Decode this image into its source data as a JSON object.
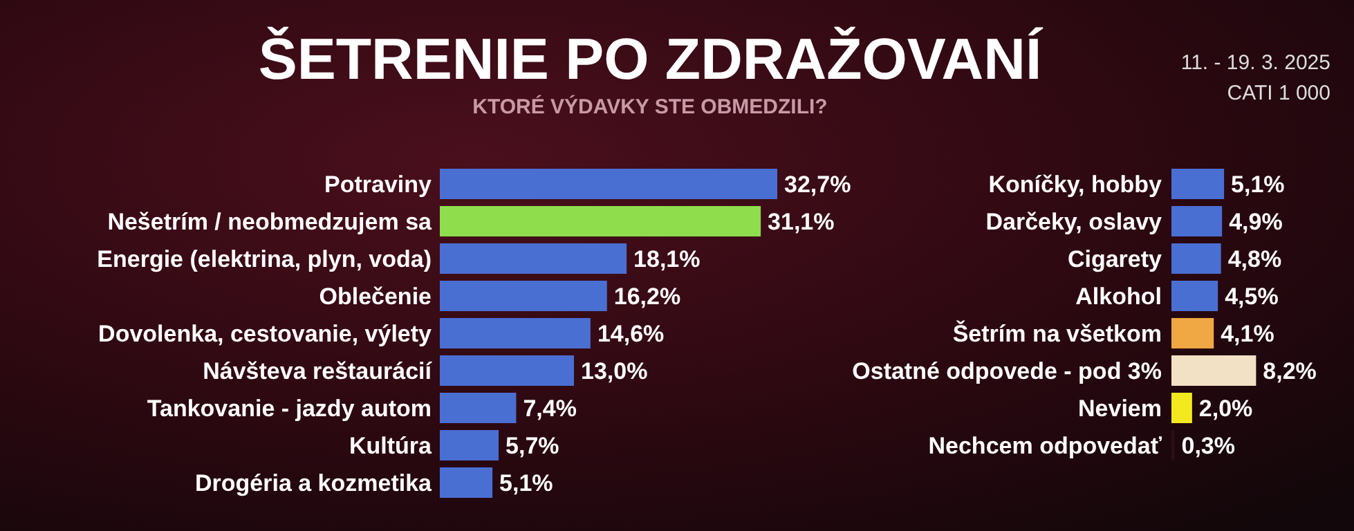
{
  "chart_data": [
    {
      "type": "bar",
      "orientation": "horizontal",
      "title": "ŠETRENIE PO ZDRAŽOVANÍ",
      "subtitle": "KTORÉ VÝDAVKY STE OBMEDZILI?",
      "annotations": [
        "11. - 19. 3. 2025",
        "CATI 1 000"
      ],
      "categories": [
        "Potraviny",
        "Nešetrím / neobmedzujem sa",
        "Energie (elektrina, plyn, voda)",
        "Oblečenie",
        "Dovolenka, cestovanie, výlety",
        "Návšteva reštaurácií",
        "Tankovanie - jazdy autom",
        "Kultúra",
        "Drogéria a kozmetika"
      ],
      "values": [
        32.7,
        31.1,
        18.1,
        16.2,
        14.6,
        13.0,
        7.4,
        5.7,
        5.1
      ],
      "value_labels": [
        "32,7%",
        "31,1%",
        "18,1%",
        "16,2%",
        "14,6%",
        "13,0%",
        "7,4%",
        "5,7%",
        "5,1%"
      ],
      "colors": [
        "#4a6fd3",
        "#8fdc4c",
        "#4a6fd3",
        "#4a6fd3",
        "#4a6fd3",
        "#4a6fd3",
        "#4a6fd3",
        "#4a6fd3",
        "#4a6fd3"
      ]
    },
    {
      "type": "bar",
      "orientation": "horizontal",
      "categories": [
        "Koníčky, hobby",
        "Darčeky, oslavy",
        "Cigarety",
        "Alkohol",
        "Šetrím na všetkom",
        "Ostatné odpovede - pod 3%",
        "Neviem",
        "Nechcem odpovedať"
      ],
      "values": [
        5.1,
        4.9,
        4.8,
        4.5,
        4.1,
        8.2,
        2.0,
        0.3
      ],
      "value_labels": [
        "5,1%",
        "4,9%",
        "4,8%",
        "4,5%",
        "4,1%",
        "8,2%",
        "2,0%",
        "0,3%"
      ],
      "colors": [
        "#4a6fd3",
        "#4a6fd3",
        "#4a6fd3",
        "#4a6fd3",
        "#f0a844",
        "#f3e1c6",
        "#f2ea1e",
        "#2a1015"
      ]
    }
  ]
}
